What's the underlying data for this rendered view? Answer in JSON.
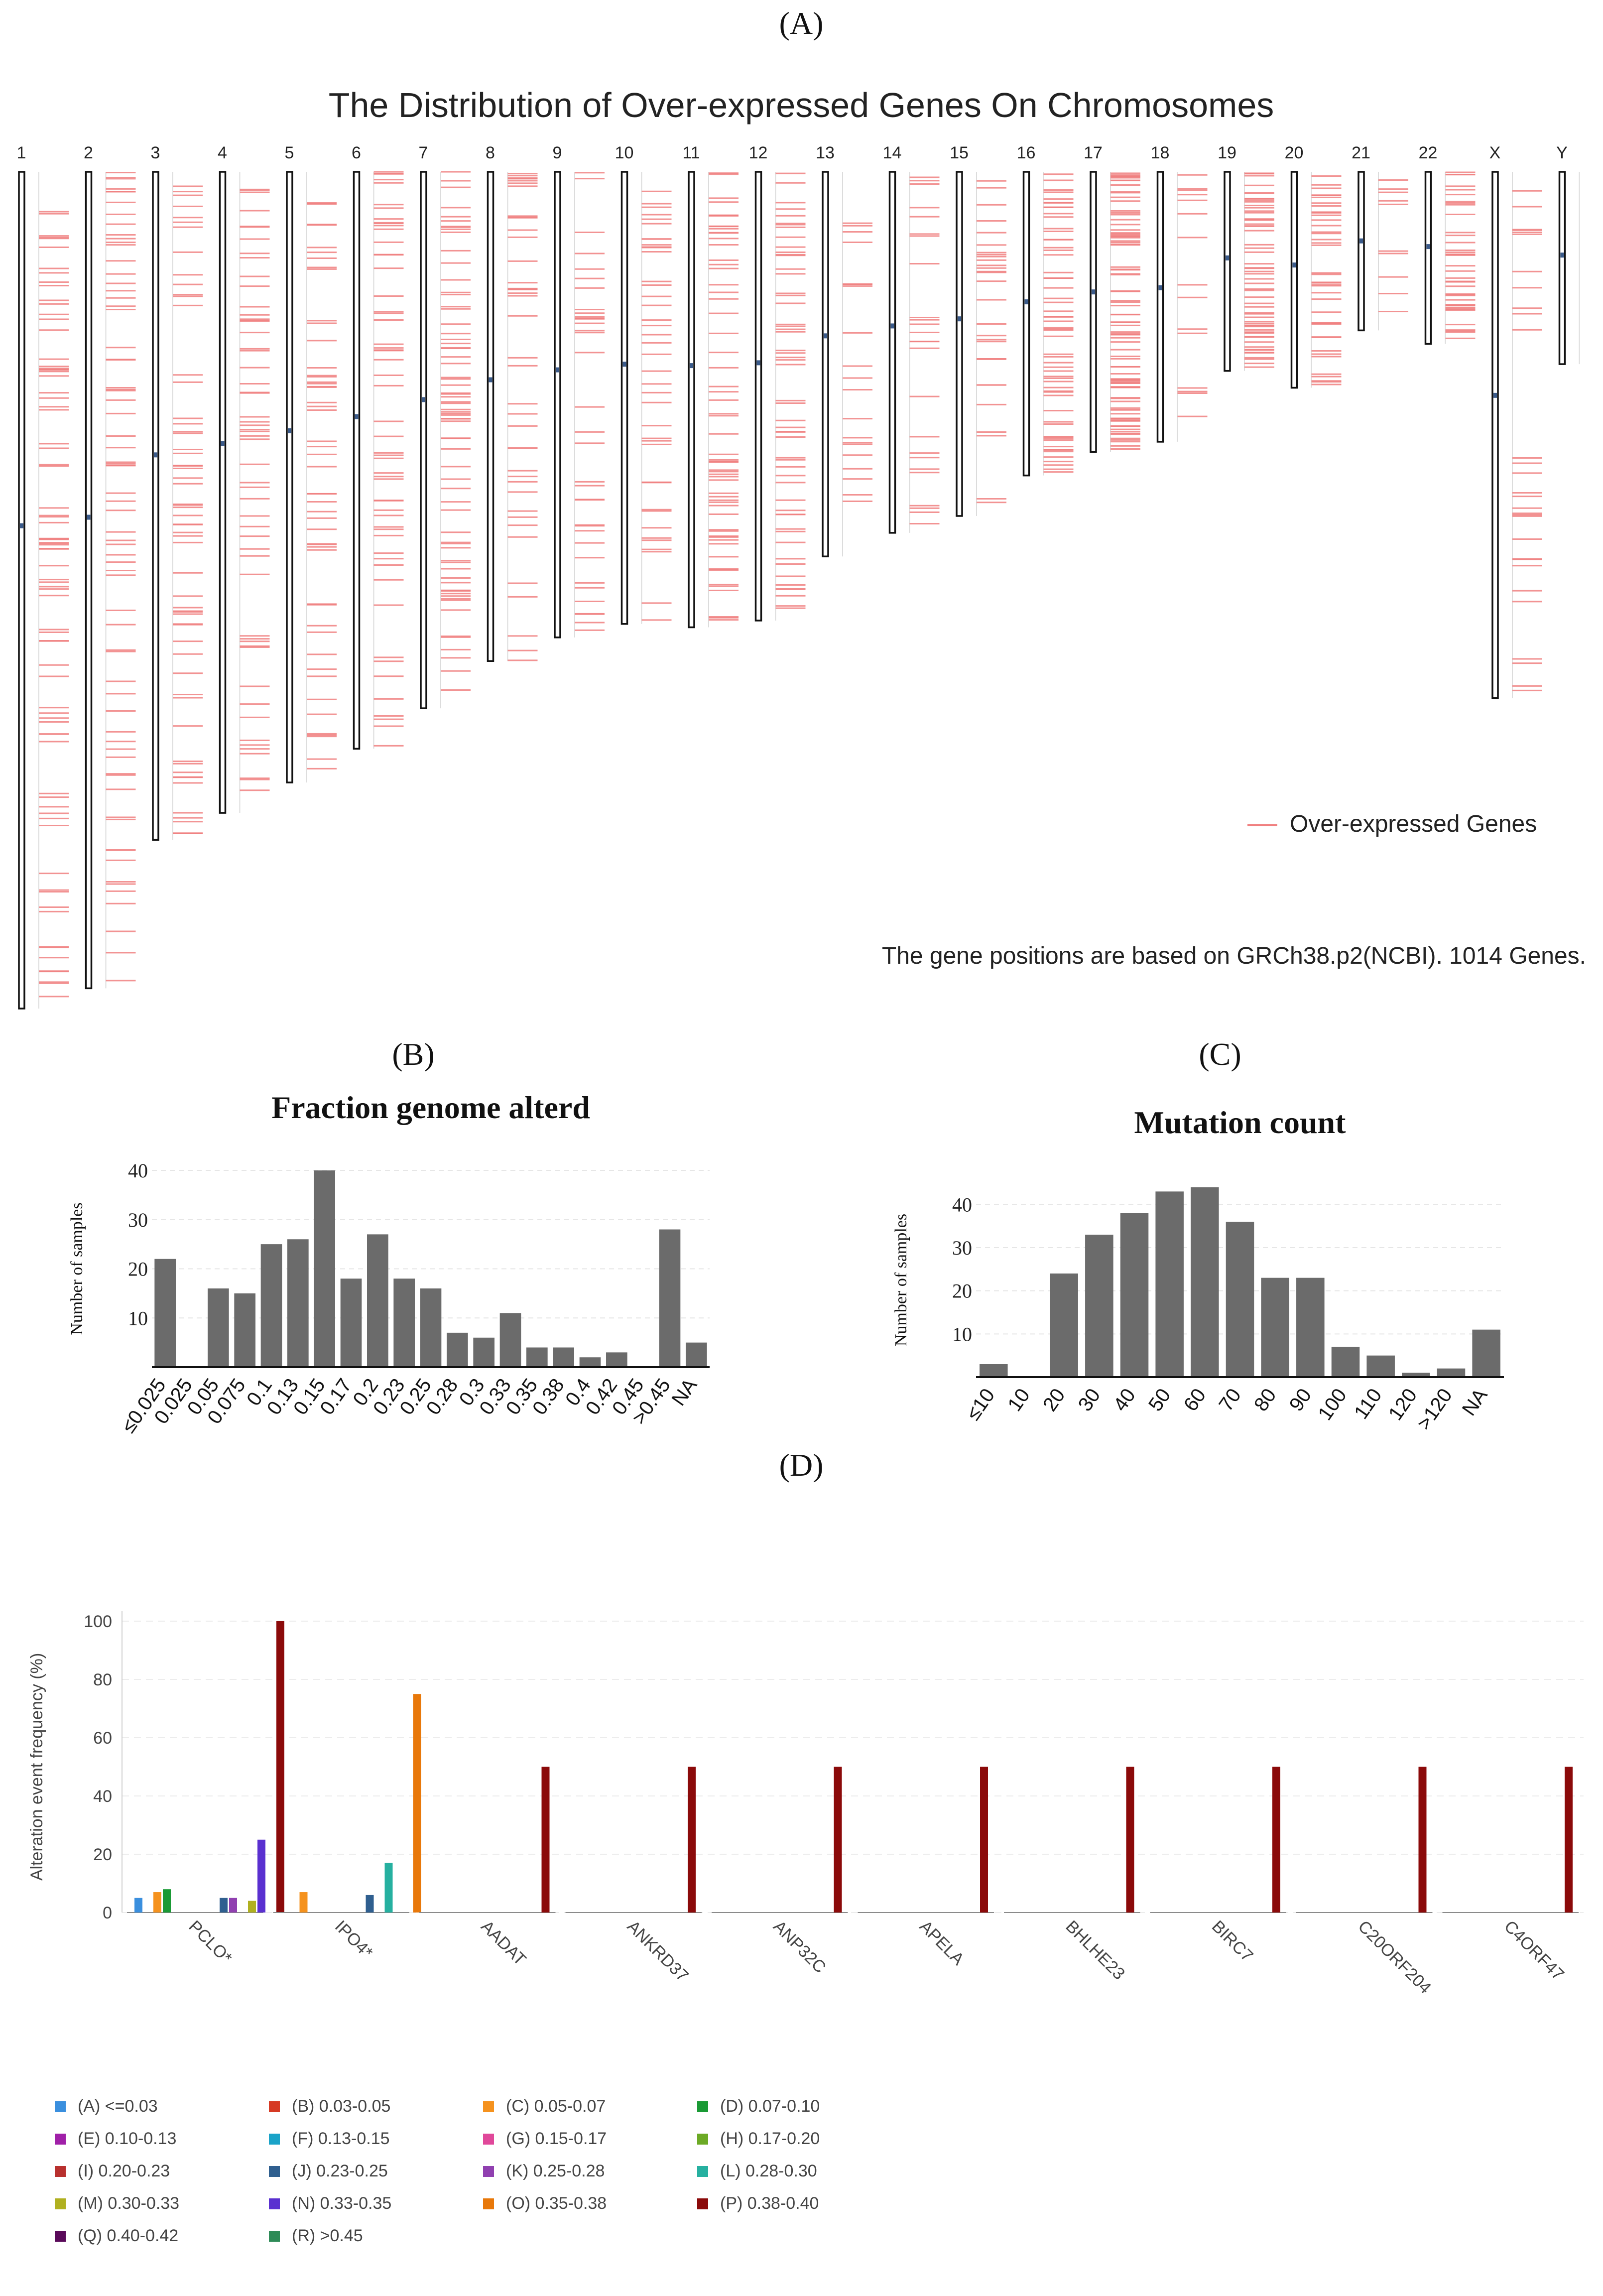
{
  "panels": {
    "a": "(A)",
    "b": "(B)",
    "c": "(C)",
    "d": "(D)"
  },
  "chart_data": [
    {
      "type": "ideogram",
      "title": "The Distribution of Over-expressed Genes On Chromosomes",
      "chromosomes": [
        "1",
        "2",
        "3",
        "4",
        "5",
        "6",
        "7",
        "8",
        "9",
        "10",
        "11",
        "12",
        "13",
        "14",
        "15",
        "16",
        "17",
        "18",
        "19",
        "20",
        "21",
        "22",
        "X",
        "Y"
      ],
      "chromosome_lengths_mb": [
        248,
        242,
        198,
        190,
        181,
        171,
        159,
        145,
        138,
        134,
        135,
        133,
        114,
        107,
        102,
        90,
        83,
        80,
        59,
        64,
        47,
        51,
        156,
        57
      ],
      "legend": "Over-expressed Genes",
      "note": "The gene positions are based on GRCh38.p2(NCBI). 1014 Genes.",
      "gene_color": "#f08080"
    },
    {
      "type": "bar",
      "title": "Fraction genome alterd",
      "ylabel": "Number of samples",
      "categories": [
        "≤0.025",
        "0.025",
        "0.05",
        "0.075",
        "0.1",
        "0.13",
        "0.15",
        "0.17",
        "0.2",
        "0.23",
        "0.25",
        "0.28",
        "0.3",
        "0.33",
        "0.35",
        "0.38",
        "0.4",
        "0.42",
        "0.45",
        ">0.45",
        "NA"
      ],
      "values": [
        22,
        0,
        16,
        15,
        25,
        26,
        40,
        18,
        27,
        18,
        16,
        7,
        6,
        11,
        4,
        4,
        2,
        3,
        0,
        28,
        5
      ],
      "ylim": [
        0,
        40
      ],
      "yticks": [
        10,
        20,
        30,
        40
      ],
      "bar_color": "#6b6b6b"
    },
    {
      "type": "bar",
      "title": "Mutation count",
      "ylabel": "Number of samples",
      "categories": [
        "≤10",
        "10",
        "20",
        "30",
        "40",
        "50",
        "60",
        "70",
        "80",
        "90",
        "100",
        "110",
        "120",
        ">120",
        "NA"
      ],
      "values": [
        3,
        0,
        24,
        33,
        38,
        43,
        44,
        36,
        23,
        23,
        7,
        5,
        1,
        2,
        11
      ],
      "ylim": [
        0,
        45
      ],
      "yticks": [
        10,
        20,
        30,
        40
      ],
      "bar_color": "#6b6b6b"
    },
    {
      "type": "bar",
      "ylabel": "Alteration event frequency (%)",
      "categories": [
        "PCLO*",
        "IPO4*",
        "AADAT",
        "ANKRD37",
        "ANP32C",
        "APELA",
        "BHLHE23",
        "BIRC7",
        "C20ORF204",
        "C4ORF47"
      ],
      "ylim": [
        0,
        100
      ],
      "yticks": [
        0,
        20,
        40,
        60,
        80,
        100
      ],
      "series": [
        {
          "name": "(A) <=0.03",
          "color": "#3a8fde",
          "values": [
            5,
            0,
            0,
            0,
            0,
            0,
            0,
            0,
            0,
            0
          ]
        },
        {
          "name": "(B) 0.03-0.05",
          "color": "#d63a24",
          "values": [
            0,
            0,
            0,
            0,
            0,
            0,
            0,
            0,
            0,
            0
          ]
        },
        {
          "name": "(C) 0.05-0.07",
          "color": "#f5921e",
          "values": [
            7,
            7,
            0,
            0,
            0,
            0,
            0,
            0,
            0,
            0
          ]
        },
        {
          "name": "(D) 0.07-0.10",
          "color": "#1a9a35",
          "values": [
            8,
            0,
            0,
            0,
            0,
            0,
            0,
            0,
            0,
            0
          ]
        },
        {
          "name": "(E) 0.10-0.13",
          "color": "#a020a8",
          "values": [
            0,
            0,
            0,
            0,
            0,
            0,
            0,
            0,
            0,
            0
          ]
        },
        {
          "name": "(F) 0.13-0.15",
          "color": "#1aa3c8",
          "values": [
            0,
            0,
            0,
            0,
            0,
            0,
            0,
            0,
            0,
            0
          ]
        },
        {
          "name": "(G) 0.15-0.17",
          "color": "#e0489a",
          "values": [
            0,
            0,
            0,
            0,
            0,
            0,
            0,
            0,
            0,
            0
          ]
        },
        {
          "name": "(H) 0.17-0.20",
          "color": "#6caa25",
          "values": [
            0,
            0,
            0,
            0,
            0,
            0,
            0,
            0,
            0,
            0
          ]
        },
        {
          "name": "(I) 0.20-0.23",
          "color": "#b8302e",
          "values": [
            0,
            0,
            0,
            0,
            0,
            0,
            0,
            0,
            0,
            0
          ]
        },
        {
          "name": "(J) 0.23-0.25",
          "color": "#2f5f8f",
          "values": [
            5,
            6,
            0,
            0,
            0,
            0,
            0,
            0,
            0,
            0
          ]
        },
        {
          "name": "(K) 0.25-0.28",
          "color": "#9040b0",
          "values": [
            5,
            0,
            0,
            0,
            0,
            0,
            0,
            0,
            0,
            0
          ]
        },
        {
          "name": "(L) 0.28-0.30",
          "color": "#26b0a0",
          "values": [
            0,
            17,
            0,
            0,
            0,
            0,
            0,
            0,
            0,
            0
          ]
        },
        {
          "name": "(M) 0.30-0.33",
          "color": "#b0b020",
          "values": [
            4,
            0,
            0,
            0,
            0,
            0,
            0,
            0,
            0,
            0
          ]
        },
        {
          "name": "(N) 0.33-0.35",
          "color": "#5a30d0",
          "values": [
            25,
            0,
            0,
            0,
            0,
            0,
            0,
            0,
            0,
            0
          ]
        },
        {
          "name": "(O) 0.35-0.38",
          "color": "#e8780a",
          "values": [
            0,
            75,
            0,
            0,
            0,
            0,
            0,
            0,
            0,
            0
          ]
        },
        {
          "name": "(P) 0.38-0.40",
          "color": "#8b0a0a",
          "values": [
            100,
            0,
            50,
            50,
            50,
            50,
            50,
            50,
            50,
            50
          ]
        },
        {
          "name": "(Q) 0.40-0.42",
          "color": "#5a0a5a",
          "values": [
            0,
            0,
            0,
            0,
            0,
            0,
            0,
            0,
            0,
            0
          ]
        },
        {
          "name": "(R) >0.45",
          "color": "#2e8b57",
          "values": [
            0,
            0,
            0,
            0,
            0,
            0,
            0,
            0,
            0,
            0
          ]
        }
      ]
    }
  ]
}
